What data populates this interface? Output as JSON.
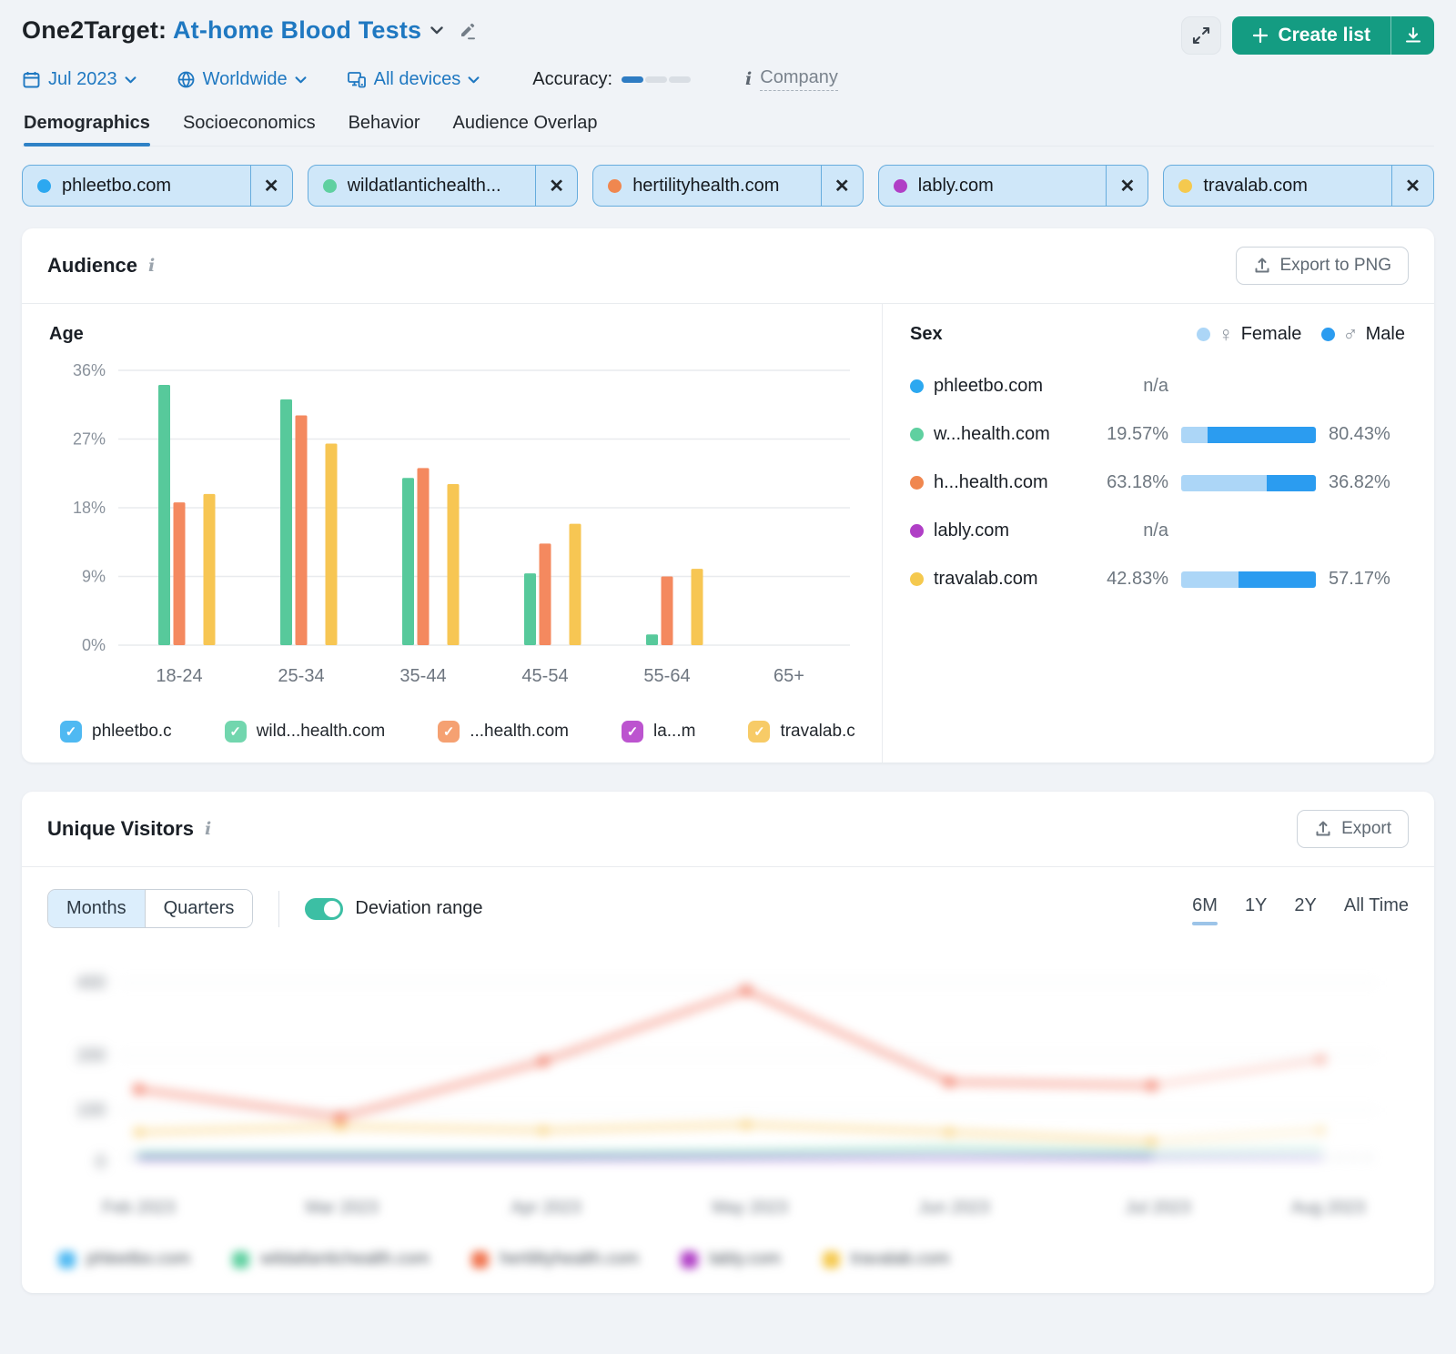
{
  "colors": {
    "accent_blue": "#1F78C1",
    "brand_green": "#149C82",
    "tab_underline": "#2E81C6",
    "female_blue": "#ACD6F7",
    "male_blue": "#2B9CF0",
    "toggle_teal": "#3CBFA4",
    "chip_bg": "#CFE7F9",
    "chip_border": "#66ACDD"
  },
  "header": {
    "product_label": "One2Target:",
    "report_title": "At-home Blood Tests",
    "date_filter": "Jul 2023",
    "region_filter": "Worldwide",
    "devices_filter": "All devices",
    "accuracy_label": "Accuracy:",
    "accuracy_level": "1 of 3",
    "company_label": "Company",
    "create_list_label": "Create list",
    "tabs": [
      {
        "label": "Demographics",
        "active": true
      },
      {
        "label": "Socioeconomics",
        "active": false
      },
      {
        "label": "Behavior",
        "active": false
      },
      {
        "label": "Audience Overlap",
        "active": false
      }
    ]
  },
  "domain_chips": [
    {
      "label": "phleetbo.com",
      "color": "#2CA8F0"
    },
    {
      "label": "wildatlantichealth...",
      "color": "#5FD0A0"
    },
    {
      "label": "hertilityhealth.com",
      "color": "#F0874F"
    },
    {
      "label": "lably.com",
      "color": "#B03FC6"
    },
    {
      "label": "travalab.com",
      "color": "#F5C94E"
    }
  ],
  "audience": {
    "title": "Audience",
    "export_button": "Export to PNG",
    "age_title": "Age",
    "age_legend": [
      {
        "label": "phleetbo.c",
        "color": "#4FB9F2"
      },
      {
        "label": "wild...health.com",
        "color": "#72D6AE"
      },
      {
        "label": "...health.com",
        "color": "#F5A172"
      },
      {
        "label": "la...m",
        "color": "#BC54CF"
      },
      {
        "label": "travalab.c",
        "color": "#F7CB67"
      }
    ],
    "sex": {
      "title": "Sex",
      "female_label": "Female",
      "male_label": "Male",
      "na_label": "n/a"
    }
  },
  "unique_visitors": {
    "title": "Unique Visitors",
    "export_button": "Export",
    "granularity": [
      {
        "label": "Months",
        "active": true
      },
      {
        "label": "Quarters",
        "active": false
      }
    ],
    "deviation_label": "Deviation range",
    "ranges": [
      {
        "label": "6M",
        "active": true
      },
      {
        "label": "1Y",
        "active": false
      },
      {
        "label": "2Y",
        "active": false
      },
      {
        "label": "All Time",
        "active": false
      }
    ],
    "legend": [
      {
        "name": "phleetbo.com",
        "color": "#4FB9F2"
      },
      {
        "name": "wildatlantichealth.com",
        "color": "#5FD0A0"
      },
      {
        "name": "hertilityhealth.com",
        "color": "#F0744F"
      },
      {
        "name": "lably.com",
        "color": "#B03FC6"
      },
      {
        "name": "travalab.com",
        "color": "#F5C94E"
      }
    ]
  },
  "chart_data": [
    {
      "id": "age-distribution",
      "type": "bar",
      "title": "Age",
      "categories": [
        "18-24",
        "25-34",
        "35-44",
        "45-54",
        "55-64",
        "65+"
      ],
      "yticks": [
        "0%",
        "9%",
        "18%",
        "27%",
        "36%"
      ],
      "ylim": [
        0,
        36
      ],
      "grid": true,
      "legend_position": "bottom",
      "series": [
        {
          "name": "phleetbo.com",
          "color": "#2CA8F0",
          "values": [
            null,
            null,
            null,
            null,
            null,
            null
          ]
        },
        {
          "name": "wildatlantichealth.com",
          "color": "#57C99B",
          "values": [
            34.1,
            32.2,
            21.9,
            9.4,
            1.4,
            0
          ]
        },
        {
          "name": "hertilityhealth.com",
          "color": "#F4895F",
          "values": [
            18.7,
            30.1,
            23.2,
            13.3,
            9.0,
            0
          ]
        },
        {
          "name": "lably.com",
          "color": "#B03FC6",
          "values": [
            null,
            null,
            null,
            null,
            null,
            null
          ]
        },
        {
          "name": "travalab.com",
          "color": "#F7C653",
          "values": [
            19.8,
            26.4,
            21.1,
            15.9,
            10.0,
            0
          ]
        }
      ]
    },
    {
      "id": "sex-split",
      "type": "bar",
      "title": "Sex",
      "categories": [
        "Female",
        "Male"
      ],
      "rows": [
        {
          "domain": "phleetbo.com",
          "color": "#2CA8F0",
          "female": null,
          "male": null
        },
        {
          "domain": "w...health.com",
          "color": "#5FD0A0",
          "female": 19.57,
          "male": 80.43
        },
        {
          "domain": "h...health.com",
          "color": "#F0874F",
          "female": 63.18,
          "male": 36.82
        },
        {
          "domain": "lably.com",
          "color": "#B03FC6",
          "female": null,
          "male": null
        },
        {
          "domain": "travalab.com",
          "color": "#F5C94E",
          "female": 42.83,
          "male": 57.17
        }
      ]
    },
    {
      "id": "unique-visitors-trend",
      "type": "line",
      "blurred_in_source": true,
      "values_estimated": true,
      "x": [
        "Feb 2023",
        "Mar 2023",
        "Apr 2023",
        "May 2023",
        "Jun 2023",
        "Jul 2023",
        "Aug 2023"
      ],
      "yticks_blurred": [
        "400",
        "200",
        "100",
        "0"
      ],
      "last_segment_forecast": true,
      "series": [
        {
          "name": "hertilityhealth.com",
          "color": "#F1654C",
          "values_rel": [
            38,
            23,
            53,
            91,
            42,
            40,
            54
          ]
        },
        {
          "name": "travalab.com",
          "color": "#F6C14B",
          "values_rel": [
            15,
            18,
            16,
            19,
            15,
            10,
            16
          ]
        },
        {
          "name": "wildatlantichealth.com",
          "color": "#52C79B",
          "values_rel": [
            3,
            3,
            3,
            4,
            6,
            4,
            6
          ]
        },
        {
          "name": "phleetbo.com",
          "color": "#4FB9F2",
          "values_rel": [
            1.5,
            1.5,
            1.5,
            1.5,
            1.5,
            1.5,
            1.5
          ]
        },
        {
          "name": "lably.com",
          "color": "#B03FC6",
          "values_rel": [
            0.8,
            0.8,
            0.8,
            0.8,
            0.8,
            0.8,
            0.8
          ]
        }
      ]
    }
  ]
}
